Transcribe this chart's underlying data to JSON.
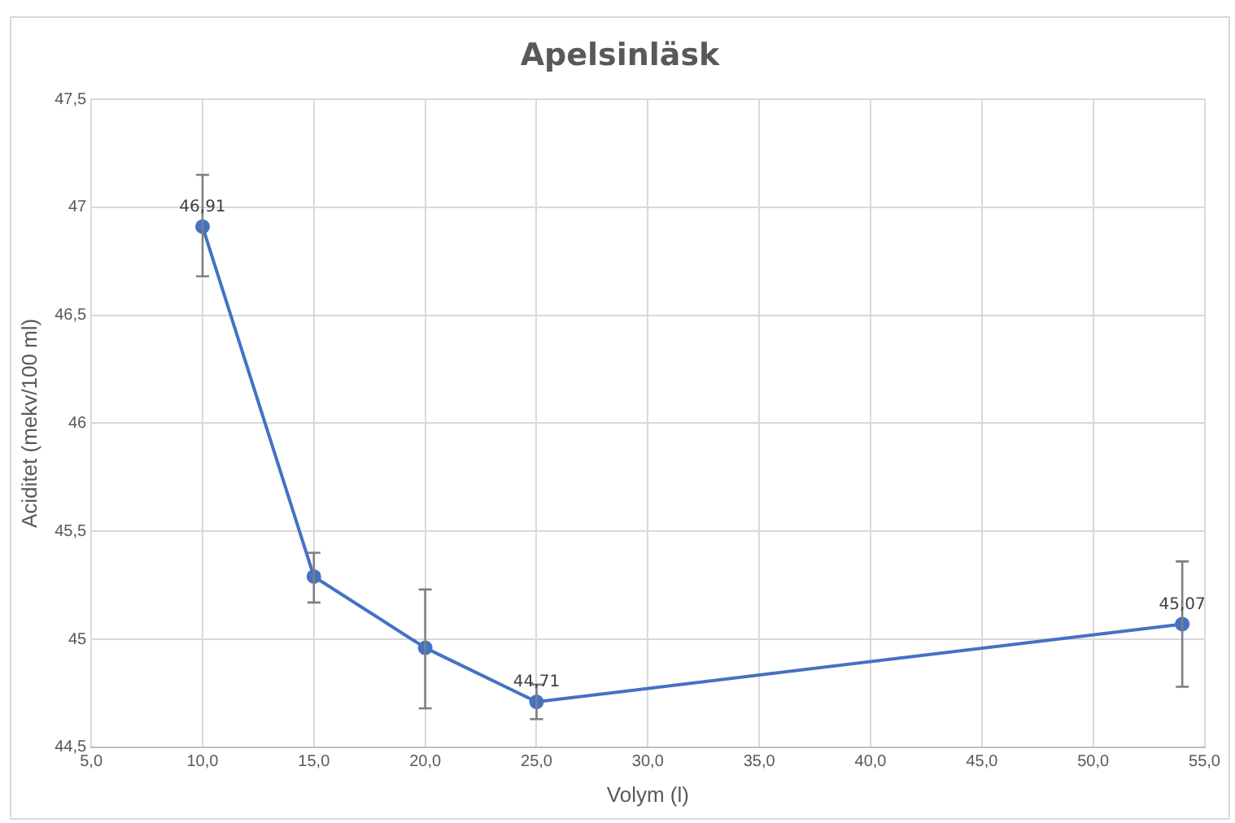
{
  "chart_data": {
    "type": "line",
    "title": "Apelsinläsk",
    "xlabel": "Volym (l)",
    "ylabel": "Aciditet (mekv/100 ml)",
    "x": [
      10,
      15,
      20,
      25,
      54
    ],
    "series": [
      {
        "color": "#4472c4",
        "values": [
          46.91,
          45.29,
          44.96,
          44.71,
          45.07
        ],
        "errors": [
          [
            46.68,
            47.15
          ],
          [
            45.17,
            45.4
          ],
          [
            44.68,
            45.23
          ],
          [
            44.63,
            44.79
          ],
          [
            44.78,
            45.36
          ]
        ],
        "value_labels": [
          "46,91",
          null,
          null,
          "44,71",
          "45,07"
        ]
      }
    ],
    "xlim": [
      5,
      55
    ],
    "xticks": [
      {
        "value": 5,
        "label": "5,0"
      },
      {
        "value": 10,
        "label": "10,0"
      },
      {
        "value": 15,
        "label": "15,0"
      },
      {
        "value": 20,
        "label": "20,0"
      },
      {
        "value": 25,
        "label": "25,0"
      },
      {
        "value": 30,
        "label": "30,0"
      },
      {
        "value": 35,
        "label": "35,0"
      },
      {
        "value": 40,
        "label": "40,0"
      },
      {
        "value": 45,
        "label": "45,0"
      },
      {
        "value": 50,
        "label": "50,0"
      },
      {
        "value": 55,
        "label": "55,0"
      }
    ],
    "ylim": [
      44.5,
      47.5
    ],
    "yticks": [
      {
        "value": 44.5,
        "label": "44,5"
      },
      {
        "value": 45,
        "label": "45"
      },
      {
        "value": 45.5,
        "label": "45,5"
      },
      {
        "value": 46,
        "label": "46"
      },
      {
        "value": 46.5,
        "label": "46,5"
      },
      {
        "value": 47,
        "label": "47"
      },
      {
        "value": 47.5,
        "label": "47,5"
      }
    ],
    "grid": true,
    "legend": false,
    "marker": "circle",
    "line_style": "solid"
  }
}
